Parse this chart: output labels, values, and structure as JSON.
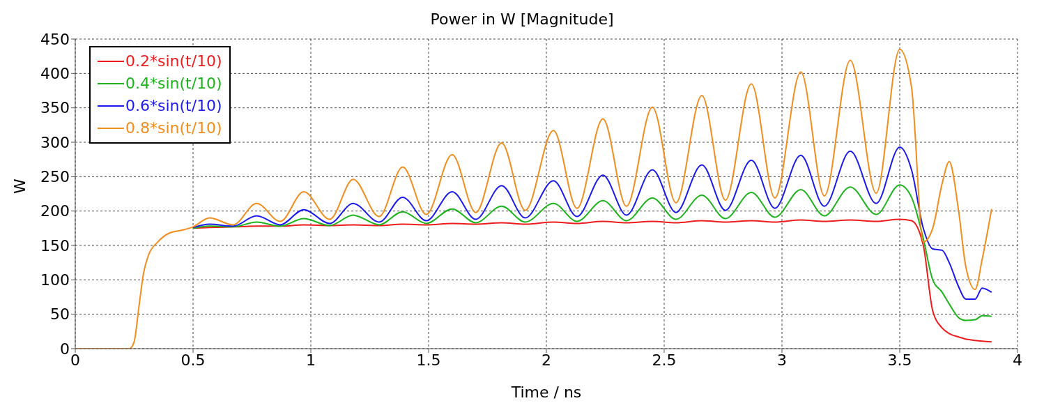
{
  "chart_data": {
    "type": "line",
    "title": "Power in W [Magnitude]",
    "xlabel": "Time / ns",
    "ylabel": "W",
    "x": [
      0,
      0.23,
      0.25,
      0.27,
      0.29,
      0.31,
      0.35,
      0.4,
      0.45,
      0.5,
      0.57,
      0.67,
      0.77,
      0.87,
      0.97,
      1.08,
      1.18,
      1.29,
      1.39,
      1.49,
      1.6,
      1.7,
      1.81,
      1.91,
      2.03,
      2.13,
      2.24,
      2.34,
      2.45,
      2.55,
      2.66,
      2.76,
      2.87,
      2.97,
      3.08,
      3.18,
      3.29,
      3.4,
      3.5,
      3.55,
      3.6,
      3.64,
      3.68,
      3.71,
      3.75,
      3.78,
      3.82,
      3.85,
      3.89
    ],
    "series": [
      {
        "name": "0.2*sin(t/10)",
        "color": "#ee1c1c",
        "values": [
          null,
          null,
          null,
          null,
          null,
          null,
          null,
          null,
          null,
          175,
          176,
          177,
          178,
          178,
          180,
          179,
          180,
          179,
          181,
          180,
          182,
          181,
          183,
          181,
          184,
          182,
          185,
          183,
          185,
          183,
          186,
          184,
          186,
          184,
          187,
          185,
          187,
          185,
          188,
          186,
          150,
          55,
          30,
          22,
          17,
          14,
          12,
          11,
          10
        ]
      },
      {
        "name": "0.4*sin(t/10)",
        "color": "#1db31d",
        "values": [
          null,
          null,
          null,
          null,
          null,
          null,
          null,
          null,
          null,
          175,
          178,
          177,
          184,
          178,
          189,
          179,
          194,
          180,
          199,
          182,
          203,
          183,
          207,
          184,
          211,
          185,
          215,
          186,
          219,
          188,
          223,
          189,
          227,
          191,
          231,
          193,
          235,
          195,
          238,
          220,
          160,
          100,
          82,
          65,
          45,
          41,
          42,
          48,
          47
        ]
      },
      {
        "name": "0.6*sin(t/10)",
        "color": "#1a1aee",
        "values": [
          null,
          null,
          null,
          null,
          null,
          null,
          null,
          null,
          null,
          176,
          181,
          178,
          193,
          180,
          202,
          182,
          211,
          184,
          220,
          186,
          228,
          188,
          237,
          190,
          244,
          192,
          252,
          194,
          260,
          198,
          267,
          201,
          274,
          204,
          281,
          207,
          287,
          211,
          293,
          260,
          175,
          145,
          143,
          125,
          90,
          72,
          72,
          88,
          82
        ]
      },
      {
        "name": "0.8*sin(t/10)",
        "color": "#f28c1c",
        "values": [
          0,
          0,
          10,
          60,
          110,
          135,
          155,
          168,
          172,
          177,
          190,
          180,
          211,
          185,
          228,
          188,
          246,
          192,
          264,
          195,
          282,
          198,
          299,
          201,
          317,
          204,
          334,
          207,
          351,
          212,
          368,
          216,
          385,
          219,
          402,
          222,
          419,
          226,
          435,
          380,
          155,
          175,
          240,
          272,
          200,
          120,
          86,
          130,
          203
        ]
      }
    ],
    "xlim": [
      0,
      4
    ],
    "xticks": [
      0,
      0.5,
      1,
      1.5,
      2,
      2.5,
      3,
      3.5,
      4
    ],
    "ylim": [
      0,
      450
    ],
    "yticks": [
      0,
      50,
      100,
      150,
      200,
      250,
      300,
      350,
      400,
      450
    ],
    "grid": true,
    "legend": "top left"
  }
}
